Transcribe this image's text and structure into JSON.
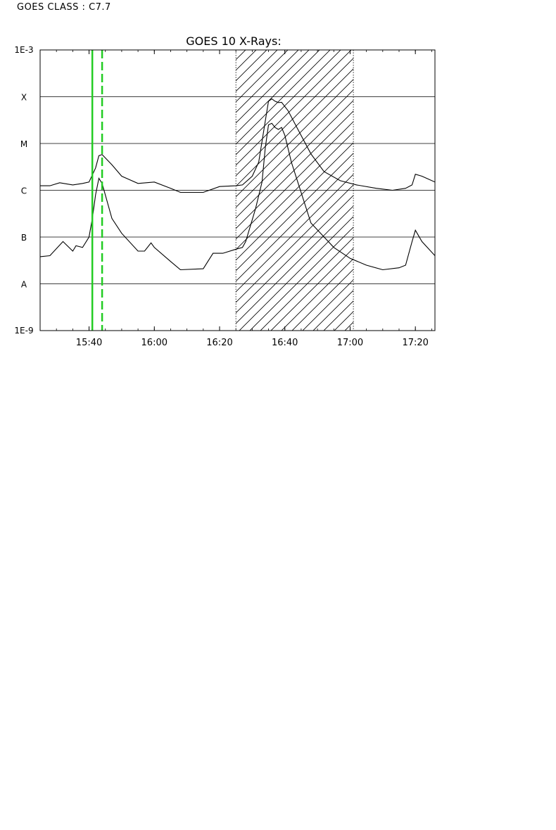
{
  "header": {
    "class_label": "GOES CLASS : C7.7"
  },
  "chart_data": {
    "type": "line",
    "title": "GOES 10 X-Rays:",
    "xlabel": "",
    "ylabel": "",
    "y_scale": "log",
    "xlim": [
      "15:25",
      "17:26"
    ],
    "ylim": [
      "1E-9",
      "1E-3"
    ],
    "y_end_labels": [
      "1E-9",
      "1E-3"
    ],
    "class_levels": [
      {
        "label": "A",
        "value": 1e-08
      },
      {
        "label": "B",
        "value": 1e-07
      },
      {
        "label": "C",
        "value": 1e-06
      },
      {
        "label": "M",
        "value": 1e-05
      },
      {
        "label": "X",
        "value": 0.0001
      }
    ],
    "x_ticks": [
      "15:40",
      "16:00",
      "16:20",
      "16:40",
      "17:00",
      "17:20"
    ],
    "grid": "horizontal at class levels",
    "markers": [
      {
        "time": "15:41",
        "style": "solid",
        "color": "#22cc22"
      },
      {
        "time": "15:44",
        "style": "dashed",
        "color": "#22cc22"
      }
    ],
    "shaded_interval": {
      "start": "16:25",
      "end": "17:01",
      "pattern": "diagonal hatch"
    },
    "series": [
      {
        "x": [
          "15:25",
          "15:28",
          "15:31",
          "15:35",
          "15:38",
          "15:40",
          "15:42",
          "15:43",
          "15:44",
          "15:47",
          "15:50",
          "15:55",
          "16:00",
          "16:05",
          "16:08",
          "16:15",
          "16:20",
          "16:25",
          "16:27",
          "16:30",
          "16:32",
          "16:34",
          "16:35",
          "16:36",
          "16:37",
          "16:38",
          "16:39",
          "16:41",
          "16:44",
          "16:48",
          "16:52",
          "16:57",
          "17:02",
          "17:08",
          "17:13",
          "17:17",
          "17:19",
          "17:20",
          "17:22",
          "17:26"
        ],
        "y": [
          1.25e-06,
          1.25e-06,
          1.45e-06,
          1.3e-06,
          1.4e-06,
          1.5e-06,
          3e-06,
          5.5e-06,
          5.8e-06,
          3.5e-06,
          2e-06,
          1.4e-06,
          1.5e-06,
          1.1e-06,
          9e-07,
          9e-07,
          1.2e-06,
          1.25e-06,
          1.3e-06,
          2e-06,
          4e-06,
          3e-05,
          8e-05,
          9e-05,
          8e-05,
          7.5e-05,
          7.6e-05,
          5e-05,
          2e-05,
          6e-06,
          2.5e-06,
          1.6e-06,
          1.3e-06,
          1.1e-06,
          1e-06,
          1.1e-06,
          1.3e-06,
          2.2e-06,
          2e-06,
          1.5e-06
        ]
      },
      {
        "x": [
          "15:25",
          "15:28",
          "15:32",
          "15:35",
          "15:36",
          "15:38",
          "15:40",
          "15:41",
          "15:42",
          "15:43",
          "15:44",
          "15:47",
          "15:50",
          "15:55",
          "15:57",
          "15:59",
          "16:00",
          "16:05",
          "16:08",
          "16:15",
          "16:18",
          "16:21",
          "16:25",
          "16:27",
          "16:28",
          "16:31",
          "16:33",
          "16:34",
          "16:35",
          "16:36",
          "16:37",
          "16:38",
          "16:39",
          "16:40",
          "16:42",
          "16:48",
          "16:55",
          "17:00",
          "17:05",
          "17:10",
          "17:15",
          "17:17",
          "17:19",
          "17:20",
          "17:22",
          "17:26"
        ],
        "y": [
          3.8e-08,
          4e-08,
          8e-08,
          5e-08,
          6.5e-08,
          6e-08,
          1e-07,
          2.5e-07,
          8e-07,
          1.8e-06,
          1.4e-06,
          2.5e-07,
          1.2e-07,
          5e-08,
          5e-08,
          7.5e-08,
          6e-08,
          3e-08,
          2e-08,
          2.1e-08,
          4.5e-08,
          4.5e-08,
          5.5e-08,
          6e-08,
          8e-08,
          4e-07,
          1.5e-06,
          8e-06,
          2.5e-05,
          2.7e-05,
          2.2e-05,
          2e-05,
          2.2e-05,
          1.5e-05,
          4e-06,
          2e-07,
          6e-08,
          3.5e-08,
          2.5e-08,
          2e-08,
          2.2e-08,
          2.5e-08,
          8e-08,
          1.4e-07,
          8e-08,
          4e-08
        ]
      }
    ]
  }
}
